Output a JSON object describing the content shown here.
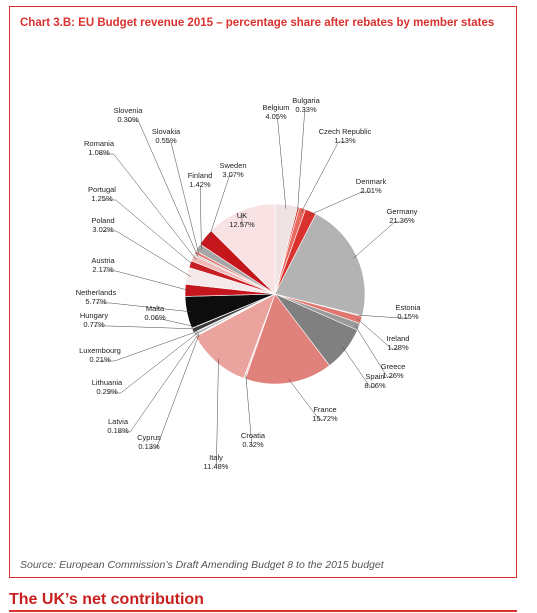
{
  "colors": {
    "accent": "#d9322f",
    "heading": "#c8201f"
  },
  "chart_data": {
    "type": "pie",
    "title": "Chart 3.B: EU Budget revenue 2015 – percentage share after rebates by member states",
    "slices": [
      {
        "name": "Belgium",
        "value": 4.05,
        "label": "4.05%",
        "color": "#f0e3e3"
      },
      {
        "name": "Bulgaria",
        "value": 0.33,
        "label": "0.33%",
        "color": "#d9322f"
      },
      {
        "name": "Czech Republic",
        "value": 1.13,
        "label": "1.13%",
        "color": "#e8695f"
      },
      {
        "name": "Denmark",
        "value": 2.01,
        "label": "2.01%",
        "color": "#d9322f"
      },
      {
        "name": "Germany",
        "value": 21.36,
        "label": "21.36%",
        "color": "#b3b3b3"
      },
      {
        "name": "Estonia",
        "value": 0.15,
        "label": "0.15%",
        "color": "#999999"
      },
      {
        "name": "Ireland",
        "value": 1.28,
        "label": "1.28%",
        "color": "#e0766e"
      },
      {
        "name": "Greece",
        "value": 1.26,
        "label": "1.26%",
        "color": "#9a9a9a"
      },
      {
        "name": "Spain",
        "value": 8.06,
        "label": "8.06%",
        "color": "#808080"
      },
      {
        "name": "France",
        "value": 15.72,
        "label": "15.72%",
        "color": "#e1817b"
      },
      {
        "name": "Croatia",
        "value": 0.32,
        "label": "0.32%",
        "color": "#f4dcdc"
      },
      {
        "name": "Italy",
        "value": 11.48,
        "label": "11.48%",
        "color": "#eba39e"
      },
      {
        "name": "Cyprus",
        "value": 0.13,
        "label": "0.13%",
        "color": "#8c8c8c"
      },
      {
        "name": "Latvia",
        "value": 0.18,
        "label": "0.18%",
        "color": "#c9c9c9"
      },
      {
        "name": "Lithuania",
        "value": 0.29,
        "label": "0.29%",
        "color": "#6e6e6e"
      },
      {
        "name": "Luxembourg",
        "value": 0.21,
        "label": "0.21%",
        "color": "#d0d0d0"
      },
      {
        "name": "Hungary",
        "value": 0.77,
        "label": "0.77%",
        "color": "#3a3a3a"
      },
      {
        "name": "Malta",
        "value": 0.06,
        "label": "0.06%",
        "color": "#dddddd"
      },
      {
        "name": "Netherlands",
        "value": 5.77,
        "label": "5.77%",
        "color": "#0d0d0d"
      },
      {
        "name": "Austria",
        "value": 2.17,
        "label": "2.17%",
        "color": "#c4161c"
      },
      {
        "name": "Poland",
        "value": 3.02,
        "label": "3.02%",
        "color": "#f6e9e9"
      },
      {
        "name": "Portugal",
        "value": 1.25,
        "label": "1.25%",
        "color": "#c92026"
      },
      {
        "name": "Romania",
        "value": 1.08,
        "label": "1.08%",
        "color": "#f0b9b5"
      },
      {
        "name": "Slovenia",
        "value": 0.3,
        "label": "0.30%",
        "color": "#bdbdbd"
      },
      {
        "name": "Slovakia",
        "value": 0.55,
        "label": "0.55%",
        "color": "#e57a73"
      },
      {
        "name": "Finland",
        "value": 1.42,
        "label": "1.42%",
        "color": "#a6a6a6"
      },
      {
        "name": "Sweden",
        "value": 3.07,
        "label": "3.07%",
        "color": "#c4161c"
      },
      {
        "name": "UK",
        "value": 12.57,
        "label": "12.57%",
        "color": "#f8e2e3"
      }
    ]
  },
  "source_text": "Source: European Commission’s Draft Amending Budget 8 to the 2015 budget",
  "section_heading": "The UK’s net contribution"
}
